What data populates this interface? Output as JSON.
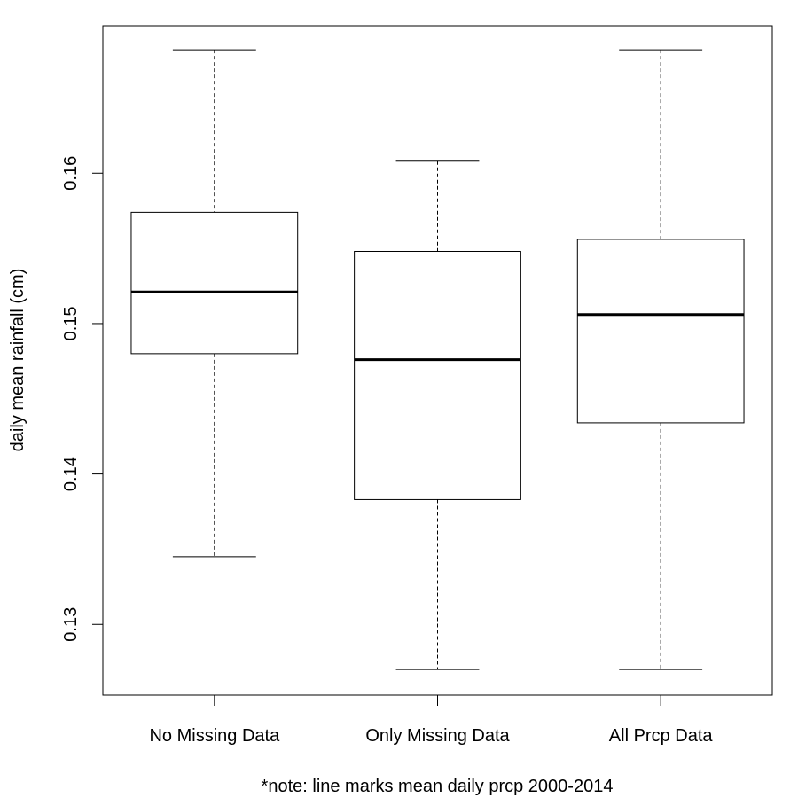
{
  "chart_data": {
    "type": "boxplot",
    "title": "",
    "xlabel": "*note: line marks mean daily prcp 2000-2014",
    "ylabel": "daily mean rainfall (cm)",
    "ylim": [
      0.1253,
      0.1698
    ],
    "yticks": [
      0.13,
      0.14,
      0.15,
      0.16
    ],
    "ytick_labels": [
      "0.13",
      "0.14",
      "0.15",
      "0.16"
    ],
    "categories": [
      "No Missing Data",
      "Only Missing Data",
      "All Prcp Data"
    ],
    "boxes": [
      {
        "whisker_low": 0.1345,
        "q1": 0.148,
        "median": 0.1521,
        "q3": 0.1574,
        "whisker_high": 0.1682
      },
      {
        "whisker_low": 0.127,
        "q1": 0.1383,
        "median": 0.1476,
        "q3": 0.1548,
        "whisker_high": 0.1608
      },
      {
        "whisker_low": 0.127,
        "q1": 0.1434,
        "median": 0.1506,
        "q3": 0.1556,
        "whisker_high": 0.1682
      }
    ],
    "reference_line": {
      "y": 0.1525
    },
    "grid": false,
    "legend": "none"
  }
}
